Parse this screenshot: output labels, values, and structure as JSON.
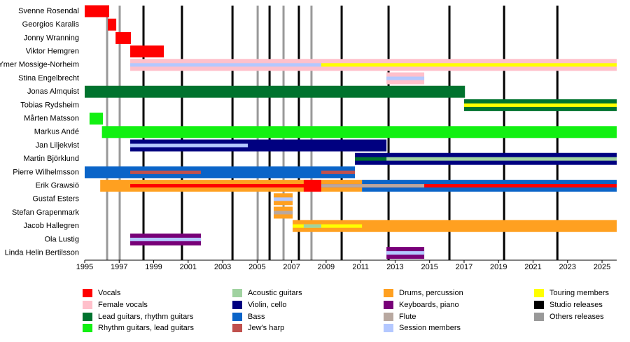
{
  "chart_data": {
    "type": "timeline",
    "xlim": [
      1995,
      2025.85
    ],
    "xticks": [
      1995,
      1997,
      1999,
      2001,
      2003,
      2005,
      2007,
      2009,
      2011,
      2013,
      2015,
      2017,
      2019,
      2021,
      2023,
      2025
    ],
    "roles": [
      {
        "name": "Vocals",
        "color": "#ff0000"
      },
      {
        "name": "Female vocals",
        "color": "#ffc0cb"
      },
      {
        "name": "Lead guitars, rhythm guitars",
        "color": "#00732e"
      },
      {
        "name": "Rhythm guitars, lead guitars",
        "color": "#12f012"
      },
      {
        "name": "Acoustic guitars",
        "color": "#a0d2a0"
      },
      {
        "name": "Violin, cello",
        "color": "#000080"
      },
      {
        "name": "Bass",
        "color": "#0a64c8"
      },
      {
        "name": "Jew's harp",
        "color": "#c0504d"
      },
      {
        "name": "Drums, percussion",
        "color": "#ffa020"
      },
      {
        "name": "Keyboards, piano",
        "color": "#780078"
      },
      {
        "name": "Flute",
        "color": "#b8a8a0"
      },
      {
        "name": "Session members",
        "color": "#b4c8ff"
      },
      {
        "name": "Touring members",
        "color": "#ffff00"
      }
    ],
    "releases": [
      {
        "name": "Studio releases",
        "color": "#000000",
        "x": [
          1998.41,
          2000.64,
          2003.57,
          2005.72,
          2007.42,
          2009.9,
          2012.62,
          2016.15,
          2019.32,
          2022.41
        ]
      },
      {
        "name": "Others releases",
        "color": "#999999",
        "x": [
          1996.3,
          1997.03,
          2005.03,
          2006.53,
          2008.15
        ]
      }
    ],
    "members": [
      {
        "name": "Svenne Rosendal",
        "bars": [
          {
            "role": "Vocals",
            "style": "full",
            "start": 1995,
            "end": 1996.42
          }
        ]
      },
      {
        "name": "Georgios Karalis",
        "bars": [
          {
            "role": "Vocals",
            "style": "full",
            "start": 1996.34,
            "end": 1996.83
          }
        ]
      },
      {
        "name": "Jonny Wranning",
        "bars": [
          {
            "role": "Vocals",
            "style": "full",
            "start": 1996.79,
            "end": 1997.68
          }
        ]
      },
      {
        "name": "Viktor Hemgren",
        "bars": [
          {
            "role": "Vocals",
            "style": "full",
            "start": 1997.64,
            "end": 1999.59
          }
        ]
      },
      {
        "name": "Ymer Mossige-Norheim",
        "bars": [
          {
            "role": "Female vocals",
            "style": "full",
            "start": 1997.64,
            "end": 2025.85
          },
          {
            "role": "Session members",
            "style": "inner",
            "start": 1997.64,
            "end": 2008.72
          },
          {
            "role": "Touring members",
            "style": "inner",
            "start": 2008.72,
            "end": 2025.85
          }
        ]
      },
      {
        "name": "Stina Engelbrecht",
        "bars": [
          {
            "role": "Female vocals",
            "style": "full",
            "start": 2012.5,
            "end": 2014.69
          },
          {
            "role": "Session members",
            "style": "inner",
            "start": 2012.5,
            "end": 2014.69
          }
        ]
      },
      {
        "name": "Jonas Almquist",
        "bars": [
          {
            "role": "Lead guitars, rhythm guitars",
            "style": "full",
            "start": 1995,
            "end": 2017.05
          }
        ]
      },
      {
        "name": "Tobias Rydsheim",
        "bars": [
          {
            "role": "Lead guitars, rhythm guitars",
            "style": "full",
            "start": 2017.0,
            "end": 2025.85
          },
          {
            "role": "Touring members",
            "style": "inner",
            "start": 2017.0,
            "end": 2025.85
          }
        ]
      },
      {
        "name": "Mårten Matsson",
        "bars": [
          {
            "role": "Rhythm guitars, lead guitars",
            "style": "full",
            "start": 1995.28,
            "end": 1996.06
          }
        ]
      },
      {
        "name": "Markus Andé",
        "bars": [
          {
            "role": "Rhythm guitars, lead guitars",
            "style": "full",
            "start": 1996.0,
            "end": 2025.85
          }
        ]
      },
      {
        "name": "Jan Liljekvist",
        "bars": [
          {
            "role": "Violin, cello",
            "style": "full",
            "start": 1997.64,
            "end": 2012.5
          },
          {
            "role": "Session members",
            "style": "inner",
            "start": 1997.64,
            "end": 2004.46
          }
        ]
      },
      {
        "name": "Martin Björklund",
        "bars": [
          {
            "role": "Violin, cello",
            "style": "full",
            "start": 2010.67,
            "end": 2025.85
          },
          {
            "role": "Lead guitars, rhythm guitars",
            "style": "inner",
            "start": 2010.67,
            "end": 2012.5
          },
          {
            "role": "Acoustic guitars",
            "style": "inner",
            "start": 2012.5,
            "end": 2025.85
          }
        ]
      },
      {
        "name": "Pierre Wilhelmsson",
        "bars": [
          {
            "role": "Bass",
            "style": "full",
            "start": 1995,
            "end": 2010.67
          },
          {
            "role": "Jew's harp",
            "style": "inner",
            "start": 1997.64,
            "end": 2001.74
          },
          {
            "role": "Jew's harp",
            "style": "inner",
            "start": 2008.72,
            "end": 2010.67
          }
        ]
      },
      {
        "name": "Erik Grawsiö",
        "bars": [
          {
            "role": "Drums, percussion",
            "style": "full",
            "start": 1995.9,
            "end": 2011.08
          },
          {
            "role": "Bass",
            "style": "full",
            "start": 2011.08,
            "end": 2025.85
          },
          {
            "role": "Vocals",
            "style": "full",
            "start": 2007.7,
            "end": 2008.72
          },
          {
            "role": "Vocals",
            "style": "inner",
            "start": 1997.64,
            "end": 2025.85
          },
          {
            "role": "Flute",
            "style": "inner",
            "start": 2008.72,
            "end": 2014.69
          }
        ]
      },
      {
        "name": "Gustaf Esters",
        "bars": [
          {
            "role": "Drums, percussion",
            "style": "full",
            "start": 2005.96,
            "end": 2007.06
          },
          {
            "role": "Session members",
            "style": "inner",
            "start": 2005.96,
            "end": 2007.06
          }
        ]
      },
      {
        "name": "Stefan Grapenmark",
        "bars": [
          {
            "role": "Drums, percussion",
            "style": "full",
            "start": 2005.96,
            "end": 2007.06
          },
          {
            "role": "Flute",
            "style": "inner",
            "start": 2005.96,
            "end": 2007.06
          }
        ]
      },
      {
        "name": "Jacob Hallegren",
        "bars": [
          {
            "role": "Drums, percussion",
            "style": "full",
            "start": 2007.06,
            "end": 2025.85
          },
          {
            "role": "Touring members",
            "style": "inner",
            "start": 2007.06,
            "end": 2011.08
          },
          {
            "role": "Acoustic guitars",
            "style": "inner",
            "start": 2007.7,
            "end": 2008.72
          }
        ]
      },
      {
        "name": "Ola Lustig",
        "bars": [
          {
            "role": "Keyboards, piano",
            "style": "full",
            "start": 1997.64,
            "end": 2001.74
          },
          {
            "role": "Session members",
            "style": "inner",
            "start": 1997.64,
            "end": 2001.74
          }
        ]
      },
      {
        "name": "Linda Helin Bertilsson",
        "bars": [
          {
            "role": "Keyboards, piano",
            "style": "full",
            "start": 2012.5,
            "end": 2014.69
          },
          {
            "role": "Session members",
            "style": "inner",
            "start": 2012.5,
            "end": 2014.69
          }
        ]
      }
    ]
  }
}
